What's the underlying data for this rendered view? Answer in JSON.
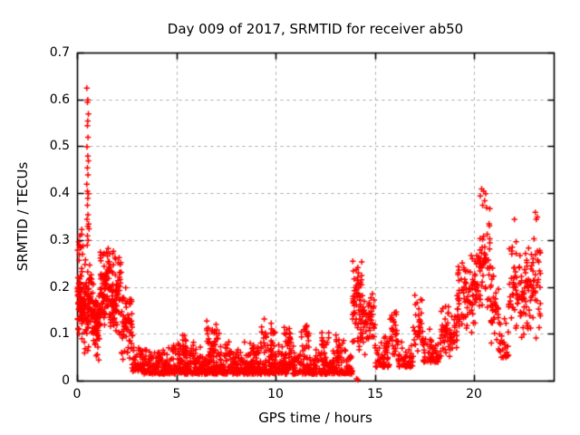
{
  "chart_data": {
    "type": "scatter",
    "title": "Day 009 of 2017, SRMTID for receiver ab50",
    "xlabel": "GPS time / hours",
    "ylabel": "SRMTID / TECUs",
    "xlim": [
      0,
      24
    ],
    "ylim": [
      0,
      0.7
    ],
    "xticks": {
      "values": [
        0,
        5,
        10,
        15,
        20
      ],
      "labels": [
        "0",
        "5",
        "10",
        "15",
        "20"
      ]
    },
    "yticks": {
      "values": [
        0,
        0.1,
        0.2,
        0.3,
        0.4,
        0.5,
        0.6,
        0.7
      ],
      "labels": [
        "0",
        "0.1",
        "0.2",
        "0.3",
        "0.4",
        "0.5",
        "0.6",
        "0.7"
      ]
    },
    "grid": true,
    "legend": "none",
    "marker": "plus",
    "marker_color": "#ff0000",
    "grid_color": "#a8a8a8",
    "border_color": "#000000",
    "series_name": "SRMTID",
    "bands": [
      {
        "x": [
          0.0,
          0.3
        ],
        "y": [
          0.08,
          0.25
        ],
        "n": 70,
        "dist": "center"
      },
      {
        "x": [
          0.0,
          0.3
        ],
        "y": [
          0.25,
          0.33
        ],
        "n": 10,
        "dist": "center"
      },
      {
        "x": [
          0.3,
          0.8
        ],
        "y": [
          0.05,
          0.27
        ],
        "n": 90,
        "dist": "center"
      },
      {
        "x": [
          0.8,
          1.15
        ],
        "y": [
          0.04,
          0.2
        ],
        "n": 70,
        "dist": "center"
      },
      {
        "x": [
          1.15,
          1.65
        ],
        "y": [
          0.1,
          0.3
        ],
        "n": 80,
        "dist": "center"
      },
      {
        "x": [
          1.65,
          2.2
        ],
        "y": [
          0.07,
          0.285
        ],
        "n": 80,
        "dist": "center"
      },
      {
        "x": [
          2.2,
          2.75
        ],
        "y": [
          0.04,
          0.21
        ],
        "n": 60,
        "dist": "center"
      },
      {
        "x": [
          2.75,
          3.3
        ],
        "y": [
          0.02,
          0.12
        ],
        "n": 55,
        "dist": "bottom"
      },
      {
        "x": [
          3.3,
          13.85
        ],
        "y": [
          0.015,
          0.085
        ],
        "n": 950,
        "dist": "bottom"
      },
      {
        "x": [
          4.8,
          5.5
        ],
        "y": [
          0.05,
          0.1
        ],
        "n": 25,
        "dist": "center"
      },
      {
        "x": [
          6.5,
          7.15
        ],
        "y": [
          0.05,
          0.13
        ],
        "n": 30,
        "dist": "center"
      },
      {
        "x": [
          7.4,
          7.8
        ],
        "y": [
          0.04,
          0.1
        ],
        "n": 14,
        "dist": "center"
      },
      {
        "x": [
          9.2,
          10.0
        ],
        "y": [
          0.05,
          0.135
        ],
        "n": 30,
        "dist": "center"
      },
      {
        "x": [
          10.4,
          10.9
        ],
        "y": [
          0.05,
          0.12
        ],
        "n": 20,
        "dist": "center"
      },
      {
        "x": [
          11.2,
          11.65
        ],
        "y": [
          0.05,
          0.13
        ],
        "n": 20,
        "dist": "center"
      },
      {
        "x": [
          12.3,
          12.65
        ],
        "y": [
          0.05,
          0.11
        ],
        "n": 10,
        "dist": "center"
      },
      {
        "x": [
          13.0,
          13.5
        ],
        "y": [
          0.04,
          0.1
        ],
        "n": 12,
        "dist": "center"
      },
      {
        "x": [
          13.85,
          14.35
        ],
        "y": [
          0.05,
          0.27
        ],
        "n": 70,
        "dist": "center"
      },
      {
        "x": [
          14.35,
          15.0
        ],
        "y": [
          0.05,
          0.2
        ],
        "n": 55,
        "dist": "center"
      },
      {
        "x": [
          15.0,
          15.7
        ],
        "y": [
          0.03,
          0.12
        ],
        "n": 55,
        "dist": "bottom"
      },
      {
        "x": [
          15.7,
          16.1
        ],
        "y": [
          0.04,
          0.17
        ],
        "n": 32,
        "dist": "center"
      },
      {
        "x": [
          16.1,
          16.9
        ],
        "y": [
          0.03,
          0.11
        ],
        "n": 55,
        "dist": "bottom"
      },
      {
        "x": [
          16.9,
          17.4
        ],
        "y": [
          0.05,
          0.19
        ],
        "n": 35,
        "dist": "center"
      },
      {
        "x": [
          17.4,
          18.3
        ],
        "y": [
          0.04,
          0.13
        ],
        "n": 60,
        "dist": "bottom"
      },
      {
        "x": [
          18.3,
          18.7
        ],
        "y": [
          0.05,
          0.17
        ],
        "n": 30,
        "dist": "center"
      },
      {
        "x": [
          18.7,
          19.1
        ],
        "y": [
          0.05,
          0.15
        ],
        "n": 30,
        "dist": "center"
      },
      {
        "x": [
          19.1,
          19.7
        ],
        "y": [
          0.07,
          0.3
        ],
        "n": 50,
        "dist": "center"
      },
      {
        "x": [
          19.7,
          20.1
        ],
        "y": [
          0.09,
          0.27
        ],
        "n": 40,
        "dist": "center"
      },
      {
        "x": [
          20.1,
          20.8
        ],
        "y": [
          0.12,
          0.38
        ],
        "n": 60,
        "dist": "center"
      },
      {
        "x": [
          20.8,
          21.2
        ],
        "y": [
          0.07,
          0.25
        ],
        "n": 35,
        "dist": "center"
      },
      {
        "x": [
          21.2,
          21.7
        ],
        "y": [
          0.05,
          0.17
        ],
        "n": 30,
        "dist": "bottom"
      },
      {
        "x": [
          21.7,
          22.3
        ],
        "y": [
          0.09,
          0.33
        ],
        "n": 45,
        "dist": "center"
      },
      {
        "x": [
          22.3,
          22.9
        ],
        "y": [
          0.08,
          0.3
        ],
        "n": 55,
        "dist": "center"
      },
      {
        "x": [
          22.9,
          23.35
        ],
        "y": [
          0.08,
          0.33
        ],
        "n": 35,
        "dist": "center"
      }
    ],
    "outlier_points": [
      [
        0.47,
        0.625
      ],
      [
        0.52,
        0.6
      ],
      [
        0.5,
        0.595
      ],
      [
        0.55,
        0.57
      ],
      [
        0.52,
        0.555
      ],
      [
        0.5,
        0.545
      ],
      [
        0.53,
        0.52
      ],
      [
        0.48,
        0.5
      ],
      [
        0.52,
        0.48
      ],
      [
        0.55,
        0.47
      ],
      [
        0.5,
        0.455
      ],
      [
        0.53,
        0.44
      ],
      [
        0.47,
        0.42
      ],
      [
        0.5,
        0.405
      ],
      [
        0.55,
        0.4
      ],
      [
        0.52,
        0.39
      ],
      [
        0.5,
        0.375
      ],
      [
        0.53,
        0.355
      ],
      [
        0.48,
        0.345
      ],
      [
        0.56,
        0.335
      ],
      [
        0.52,
        0.33
      ],
      [
        0.58,
        0.325
      ],
      [
        0.5,
        0.31
      ],
      [
        0.54,
        0.3
      ],
      [
        0.49,
        0.29
      ],
      [
        0.12,
        0.31
      ],
      [
        0.18,
        0.285
      ],
      [
        0.1,
        0.27
      ],
      [
        20.35,
        0.41
      ],
      [
        20.45,
        0.405
      ],
      [
        20.28,
        0.395
      ],
      [
        20.55,
        0.4
      ],
      [
        20.5,
        0.385
      ],
      [
        20.4,
        0.375
      ],
      [
        20.6,
        0.37
      ],
      [
        23.05,
        0.36
      ],
      [
        23.15,
        0.35
      ],
      [
        23.1,
        0.345
      ],
      [
        22.0,
        0.345
      ],
      [
        14.05,
        0.005
      ],
      [
        14.12,
        0.003
      ]
    ]
  }
}
